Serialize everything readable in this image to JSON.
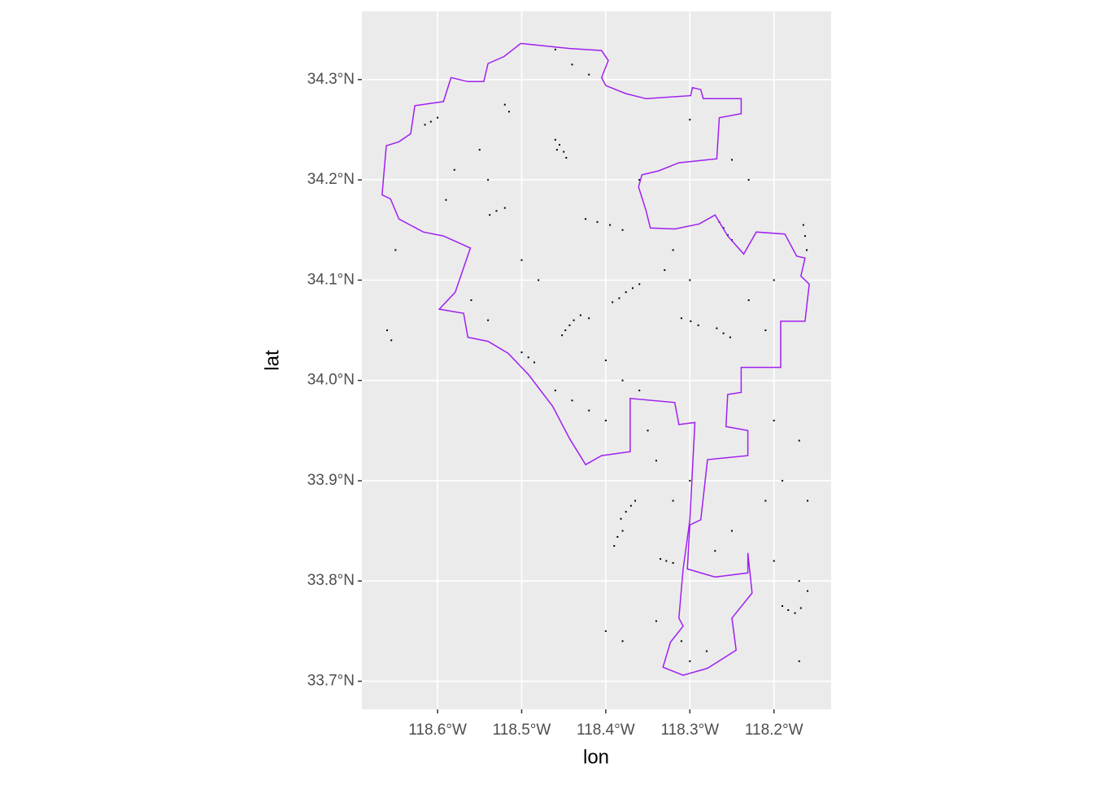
{
  "chart_data": {
    "type": "map",
    "x_label": "lon",
    "y_label": "lat",
    "xlim": [
      -118.69,
      -118.132
    ],
    "ylim": [
      33.672,
      34.368
    ],
    "xticks": [
      {
        "value": -118.6,
        "label": "118.6°W"
      },
      {
        "value": -118.5,
        "label": "118.5°W"
      },
      {
        "value": -118.4,
        "label": "118.4°W"
      },
      {
        "value": -118.3,
        "label": "118.3°W"
      },
      {
        "value": -118.2,
        "label": "118.2°W"
      }
    ],
    "yticks": [
      {
        "value": 33.7,
        "label": "33.7°N"
      },
      {
        "value": 33.8,
        "label": "33.8°N"
      },
      {
        "value": 33.9,
        "label": "33.9°N"
      },
      {
        "value": 34.0,
        "label": "34.0°N"
      },
      {
        "value": 34.1,
        "label": "34.1°N"
      },
      {
        "value": 34.2,
        "label": "34.2°N"
      },
      {
        "value": 34.3,
        "label": "34.3°N"
      }
    ],
    "grid": true,
    "boundary": {
      "color": "#a020f0",
      "x": [
        -118.501,
        -118.443,
        -118.405,
        -118.397,
        -118.405,
        -118.4,
        -118.376,
        -118.352,
        -118.299,
        -118.297,
        -118.287,
        -118.284,
        -118.239,
        -118.239,
        -118.265,
        -118.268,
        -118.313,
        -118.337,
        -118.357,
        -118.361,
        -118.352,
        -118.347,
        -118.318,
        -118.289,
        -118.27,
        -118.255,
        -118.236,
        -118.221,
        -118.187,
        -118.173,
        -118.163,
        -118.168,
        -118.158,
        -118.163,
        -118.192,
        -118.192,
        -118.239,
        -118.239,
        -118.255,
        -118.257,
        -118.231,
        -118.231,
        -118.279,
        -118.287,
        -118.3,
        -118.303,
        -118.27,
        -118.231,
        -118.231,
        -118.226,
        -118.25,
        -118.245,
        -118.26,
        -118.279,
        -118.308,
        -118.332,
        -118.323,
        -118.308,
        -118.313,
        -118.308,
        -118.3,
        -118.294,
        -118.313,
        -118.318,
        -118.371,
        -118.371,
        -118.405,
        -118.424,
        -118.443,
        -118.463,
        -118.492,
        -118.516,
        -118.54,
        -118.564,
        -118.569,
        -118.598,
        -118.579,
        -118.561,
        -118.593,
        -118.617,
        -118.646,
        -118.656,
        -118.666,
        -118.661,
        -118.646,
        -118.632,
        -118.627,
        -118.593,
        -118.584,
        -118.564,
        -118.545,
        -118.54,
        -118.521,
        -118.501
      ],
      "y": [
        34.336,
        34.331,
        34.329,
        34.319,
        34.302,
        34.294,
        34.286,
        34.281,
        34.284,
        34.292,
        34.29,
        34.281,
        34.281,
        34.266,
        34.262,
        34.221,
        34.217,
        34.209,
        34.205,
        34.193,
        34.169,
        34.152,
        34.151,
        34.156,
        34.165,
        34.144,
        34.126,
        34.148,
        34.146,
        34.124,
        34.122,
        34.104,
        34.096,
        34.059,
        34.059,
        34.013,
        34.013,
        33.988,
        33.986,
        33.954,
        33.95,
        33.925,
        33.921,
        33.861,
        33.856,
        33.812,
        33.804,
        33.808,
        33.828,
        33.788,
        33.763,
        33.731,
        33.723,
        33.713,
        33.706,
        33.714,
        33.739,
        33.755,
        33.763,
        33.812,
        33.861,
        33.958,
        33.956,
        33.978,
        33.982,
        33.929,
        33.925,
        33.916,
        33.942,
        33.974,
        34.006,
        34.027,
        34.039,
        34.043,
        34.067,
        34.071,
        34.088,
        34.132,
        34.144,
        34.148,
        34.161,
        34.181,
        34.185,
        34.234,
        34.238,
        34.246,
        34.274,
        34.278,
        34.302,
        34.298,
        34.298,
        34.316,
        34.323,
        34.336
      ]
    },
    "points": {
      "color": "#000000",
      "x": [
        -118.455,
        -118.45,
        -118.46,
        -118.447,
        -118.458,
        -118.443,
        -118.438,
        -118.448,
        -118.43,
        -118.452,
        -118.42,
        -118.376,
        -118.368,
        -118.384,
        -118.36,
        -118.392,
        -118.26,
        -118.255,
        -118.265,
        -118.25,
        -118.26,
        -118.268,
        -118.252,
        -118.376,
        -118.37,
        -118.382,
        -118.365,
        -118.183,
        -118.175,
        -118.19,
        -118.168,
        -118.163,
        -118.161,
        -118.165,
        -118.608,
        -118.6,
        -118.615,
        -118.53,
        -118.52,
        -118.538,
        -118.424,
        -118.41,
        -118.395,
        -118.38,
        -118.492,
        -118.5,
        -118.485,
        -118.299,
        -118.31,
        -118.29,
        -118.328,
        -118.335,
        -118.32,
        -118.386,
        -118.39,
        -118.38,
        -118.52,
        -118.515,
        -118.46,
        -118.44,
        -118.42,
        -118.54,
        -118.58,
        -118.59,
        -118.65,
        -118.66,
        -118.655,
        -118.56,
        -118.54,
        -118.46,
        -118.44,
        -118.42,
        -118.4,
        -118.35,
        -118.33,
        -118.32,
        -118.3,
        -118.23,
        -118.21,
        -118.2,
        -118.17,
        -118.19,
        -118.16,
        -118.21,
        -118.25,
        -118.27,
        -118.3,
        -118.32,
        -118.34,
        -118.31,
        -118.3,
        -118.28,
        -118.4,
        -118.38,
        -118.34,
        -118.36,
        -118.3,
        -118.25,
        -118.23,
        -118.2,
        -118.17,
        -118.16,
        -118.2,
        -118.17,
        -118.4,
        -118.38,
        -118.36,
        -118.48,
        -118.5,
        -118.55
      ],
      "y": [
        34.235,
        34.228,
        34.24,
        34.222,
        34.23,
        34.055,
        34.06,
        34.05,
        34.065,
        34.045,
        34.062,
        34.088,
        34.092,
        34.082,
        34.096,
        34.078,
        34.152,
        34.145,
        34.158,
        34.14,
        34.047,
        34.052,
        34.043,
        33.869,
        33.875,
        33.862,
        33.88,
        33.771,
        33.768,
        33.775,
        33.773,
        34.144,
        34.13,
        34.155,
        34.258,
        34.262,
        34.255,
        34.169,
        34.172,
        34.165,
        34.161,
        34.158,
        34.155,
        34.15,
        34.023,
        34.028,
        34.018,
        34.059,
        34.062,
        34.055,
        33.82,
        33.822,
        33.818,
        33.844,
        33.835,
        33.85,
        34.275,
        34.268,
        34.33,
        34.315,
        34.305,
        34.2,
        34.21,
        34.18,
        34.13,
        34.05,
        34.04,
        34.08,
        34.06,
        33.99,
        33.98,
        33.97,
        33.96,
        33.95,
        34.11,
        34.13,
        34.1,
        34.08,
        34.05,
        33.96,
        33.94,
        33.9,
        33.88,
        33.88,
        33.85,
        33.83,
        33.9,
        33.88,
        33.76,
        33.74,
        33.72,
        33.73,
        33.75,
        33.74,
        33.92,
        34.2,
        34.26,
        34.22,
        34.2,
        34.1,
        33.8,
        33.79,
        33.82,
        33.72,
        34.02,
        34.0,
        33.99,
        34.1,
        34.12,
        34.23
      ]
    }
  }
}
